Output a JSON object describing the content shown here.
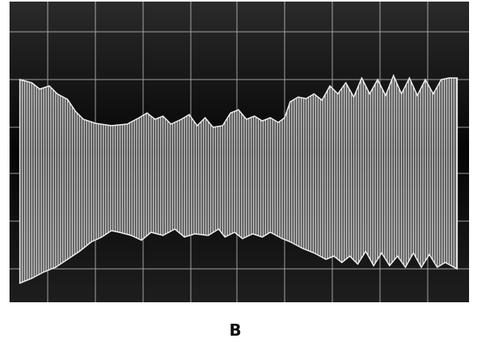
{
  "label": "B"
}
